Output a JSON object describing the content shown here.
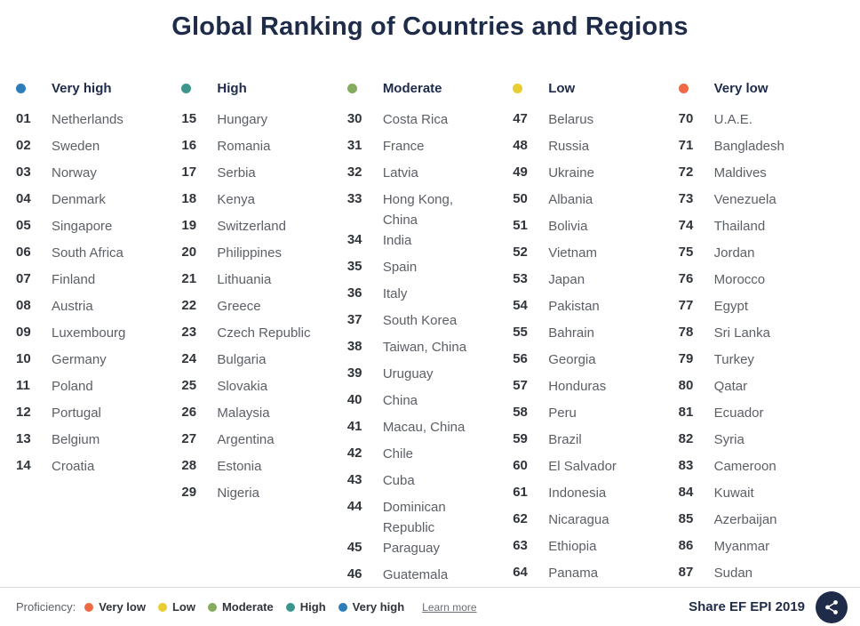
{
  "title": "Global Ranking of Countries and Regions",
  "columns": [
    {
      "label": "Very high",
      "color": "#2d7dbb",
      "entries": [
        {
          "rank": "01",
          "name": "Netherlands"
        },
        {
          "rank": "02",
          "name": "Sweden"
        },
        {
          "rank": "03",
          "name": "Norway"
        },
        {
          "rank": "04",
          "name": "Denmark"
        },
        {
          "rank": "05",
          "name": "Singapore"
        },
        {
          "rank": "06",
          "name": "South Africa"
        },
        {
          "rank": "07",
          "name": "Finland"
        },
        {
          "rank": "08",
          "name": "Austria"
        },
        {
          "rank": "09",
          "name": "Luxembourg"
        },
        {
          "rank": "10",
          "name": "Germany"
        },
        {
          "rank": "11",
          "name": "Poland"
        },
        {
          "rank": "12",
          "name": "Portugal"
        },
        {
          "rank": "13",
          "name": "Belgium"
        },
        {
          "rank": "14",
          "name": "Croatia"
        }
      ]
    },
    {
      "label": "High",
      "color": "#3d968e",
      "entries": [
        {
          "rank": "15",
          "name": "Hungary"
        },
        {
          "rank": "16",
          "name": "Romania"
        },
        {
          "rank": "17",
          "name": "Serbia"
        },
        {
          "rank": "18",
          "name": "Kenya"
        },
        {
          "rank": "19",
          "name": "Switzerland"
        },
        {
          "rank": "20",
          "name": "Philippines"
        },
        {
          "rank": "21",
          "name": "Lithuania"
        },
        {
          "rank": "22",
          "name": "Greece"
        },
        {
          "rank": "23",
          "name": "Czech Republic"
        },
        {
          "rank": "24",
          "name": "Bulgaria"
        },
        {
          "rank": "25",
          "name": "Slovakia"
        },
        {
          "rank": "26",
          "name": "Malaysia"
        },
        {
          "rank": "27",
          "name": "Argentina"
        },
        {
          "rank": "28",
          "name": "Estonia"
        },
        {
          "rank": "29",
          "name": "Nigeria"
        }
      ]
    },
    {
      "label": "Moderate",
      "color": "#85ab5c",
      "entries": [
        {
          "rank": "30",
          "name": "Costa Rica"
        },
        {
          "rank": "31",
          "name": "France"
        },
        {
          "rank": "32",
          "name": "Latvia"
        },
        {
          "rank": "33",
          "name": "Hong Kong, China"
        },
        {
          "rank": "34",
          "name": "India"
        },
        {
          "rank": "35",
          "name": "Spain"
        },
        {
          "rank": "36",
          "name": "Italy"
        },
        {
          "rank": "37",
          "name": "South Korea"
        },
        {
          "rank": "38",
          "name": "Taiwan, China"
        },
        {
          "rank": "39",
          "name": "Uruguay"
        },
        {
          "rank": "40",
          "name": "China"
        },
        {
          "rank": "41",
          "name": "Macau, China"
        },
        {
          "rank": "42",
          "name": "Chile"
        },
        {
          "rank": "43",
          "name": "Cuba"
        },
        {
          "rank": "44",
          "name": "Dominican Republic"
        },
        {
          "rank": "45",
          "name": "Paraguay"
        },
        {
          "rank": "46",
          "name": "Guatemala"
        }
      ]
    },
    {
      "label": "Low",
      "color": "#e9cb32",
      "entries": [
        {
          "rank": "47",
          "name": "Belarus"
        },
        {
          "rank": "48",
          "name": "Russia"
        },
        {
          "rank": "49",
          "name": "Ukraine"
        },
        {
          "rank": "50",
          "name": "Albania"
        },
        {
          "rank": "51",
          "name": "Bolivia"
        },
        {
          "rank": "52",
          "name": "Vietnam"
        },
        {
          "rank": "53",
          "name": "Japan"
        },
        {
          "rank": "54",
          "name": "Pakistan"
        },
        {
          "rank": "55",
          "name": "Bahrain"
        },
        {
          "rank": "56",
          "name": "Georgia"
        },
        {
          "rank": "57",
          "name": "Honduras"
        },
        {
          "rank": "58",
          "name": "Peru"
        },
        {
          "rank": "59",
          "name": "Brazil"
        },
        {
          "rank": "60",
          "name": "El Salvador"
        },
        {
          "rank": "61",
          "name": "Indonesia"
        },
        {
          "rank": "62",
          "name": "Nicaragua"
        },
        {
          "rank": "63",
          "name": "Ethiopia"
        },
        {
          "rank": "64",
          "name": "Panama"
        }
      ]
    },
    {
      "label": "Very low",
      "color": "#ed6a45",
      "entries": [
        {
          "rank": "70",
          "name": "U.A.E."
        },
        {
          "rank": "71",
          "name": "Bangladesh"
        },
        {
          "rank": "72",
          "name": "Maldives"
        },
        {
          "rank": "73",
          "name": "Venezuela"
        },
        {
          "rank": "74",
          "name": "Thailand"
        },
        {
          "rank": "75",
          "name": "Jordan"
        },
        {
          "rank": "76",
          "name": "Morocco"
        },
        {
          "rank": "77",
          "name": "Egypt"
        },
        {
          "rank": "78",
          "name": "Sri Lanka"
        },
        {
          "rank": "79",
          "name": "Turkey"
        },
        {
          "rank": "80",
          "name": "Qatar"
        },
        {
          "rank": "81",
          "name": "Ecuador"
        },
        {
          "rank": "82",
          "name": "Syria"
        },
        {
          "rank": "83",
          "name": "Cameroon"
        },
        {
          "rank": "84",
          "name": "Kuwait"
        },
        {
          "rank": "85",
          "name": "Azerbaijan"
        },
        {
          "rank": "86",
          "name": "Myanmar"
        },
        {
          "rank": "87",
          "name": "Sudan"
        }
      ]
    }
  ],
  "footer": {
    "proficiency_label": "Proficiency:",
    "legend": [
      {
        "label": "Very low",
        "color": "#ed6a45"
      },
      {
        "label": "Low",
        "color": "#e9cb32"
      },
      {
        "label": "Moderate",
        "color": "#85ab5c"
      },
      {
        "label": "High",
        "color": "#3d968e"
      },
      {
        "label": "Very high",
        "color": "#2d7dbb"
      }
    ],
    "learn_more_label": "Learn more",
    "share_label": "Share EF EPI 2019"
  }
}
